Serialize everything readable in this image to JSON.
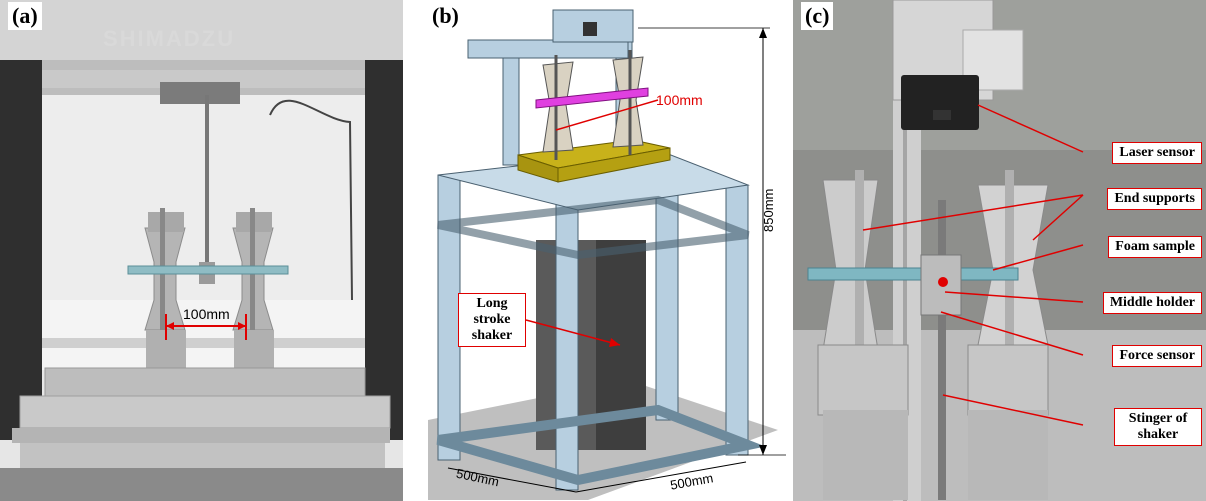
{
  "panels": {
    "a": {
      "letter": "(a)",
      "brand": "SHIMADZU",
      "distance_label": "100mm"
    },
    "b": {
      "letter": "(b)",
      "distance_label": "100mm",
      "height_label": "850mm",
      "width_label_left": "500mm",
      "width_label_right": "500mm",
      "shaker_label": [
        "Long",
        "stroke",
        "shaker"
      ]
    },
    "c": {
      "letter": "(c)",
      "callouts": [
        {
          "label": "Laser sensor"
        },
        {
          "label": "End supports"
        },
        {
          "label": "Foam sample"
        },
        {
          "label": "Middle holder"
        },
        {
          "label": "Force sensor"
        },
        {
          "label": "Stinger of shaker"
        }
      ]
    }
  },
  "colors": {
    "callout_border": "#e00000",
    "frame_aluminum": "#b7cfe0",
    "base_plate_gold": "#c8b21a",
    "foam_magenta": "#e040e0"
  }
}
